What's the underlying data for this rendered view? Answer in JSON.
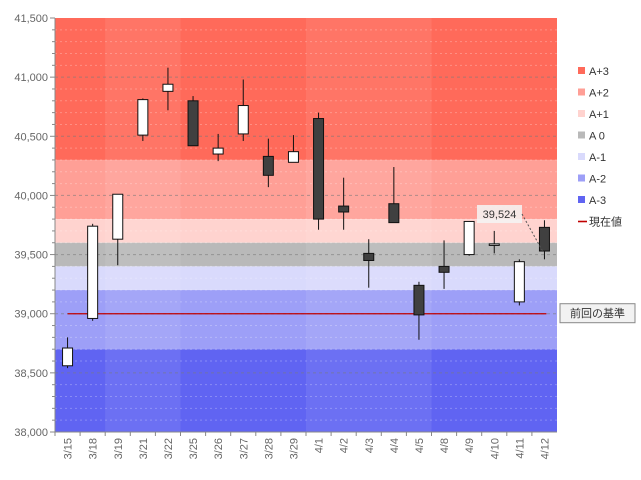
{
  "chart_data": {
    "type": "candlestick",
    "title": "",
    "ylim": [
      38000,
      41500
    ],
    "y_ticks": [
      "38,000",
      "38,500",
      "39,000",
      "39,500",
      "40,000",
      "40,500",
      "41,000",
      "41,500"
    ],
    "y_tick_values": [
      38000,
      38500,
      39000,
      39500,
      40000,
      40500,
      41000,
      41500
    ],
    "categories": [
      "3/15",
      "3/18",
      "3/19",
      "3/21",
      "3/22",
      "3/25",
      "3/26",
      "3/27",
      "3/28",
      "3/29",
      "4/1",
      "4/2",
      "4/3",
      "4/4",
      "4/5",
      "4/8",
      "4/9",
      "4/10",
      "4/11",
      "4/12"
    ],
    "ohlc": [
      {
        "date": "3/15",
        "open": 38560,
        "high": 38800,
        "low": 38540,
        "close": 38710
      },
      {
        "date": "3/18",
        "open": 38960,
        "high": 39760,
        "low": 38940,
        "close": 39740
      },
      {
        "date": "3/19",
        "open": 39630,
        "high": 40010,
        "low": 39410,
        "close": 40010
      },
      {
        "date": "3/21",
        "open": 40510,
        "high": 40820,
        "low": 40460,
        "close": 40810
      },
      {
        "date": "3/22",
        "open": 40880,
        "high": 41080,
        "low": 40720,
        "close": 40940
      },
      {
        "date": "3/25",
        "open": 40800,
        "high": 40840,
        "low": 40420,
        "close": 40420
      },
      {
        "date": "3/26",
        "open": 40350,
        "high": 40520,
        "low": 40290,
        "close": 40400
      },
      {
        "date": "3/27",
        "open": 40520,
        "high": 40980,
        "low": 40460,
        "close": 40760
      },
      {
        "date": "3/28",
        "open": 40330,
        "high": 40480,
        "low": 40070,
        "close": 40170
      },
      {
        "date": "3/29",
        "open": 40280,
        "high": 40510,
        "low": 40280,
        "close": 40370
      },
      {
        "date": "4/1",
        "open": 40650,
        "high": 40700,
        "low": 39710,
        "close": 39800
      },
      {
        "date": "4/2",
        "open": 39910,
        "high": 40150,
        "low": 39710,
        "close": 39860
      },
      {
        "date": "4/3",
        "open": 39510,
        "high": 39630,
        "low": 39220,
        "close": 39450
      },
      {
        "date": "4/4",
        "open": 39930,
        "high": 40240,
        "low": 39770,
        "close": 39770
      },
      {
        "date": "4/5",
        "open": 39240,
        "high": 39270,
        "low": 38780,
        "close": 38990
      },
      {
        "date": "4/8",
        "open": 39400,
        "high": 39620,
        "low": 39210,
        "close": 39350
      },
      {
        "date": "4/9",
        "open": 39500,
        "high": 39780,
        "low": 39490,
        "close": 39780
      },
      {
        "date": "4/10",
        "open": 39580,
        "high": 39700,
        "low": 39510,
        "close": 39590
      },
      {
        "date": "4/11",
        "open": 39100,
        "high": 39460,
        "low": 39070,
        "close": 39440
      },
      {
        "date": "4/12",
        "open": 39730,
        "high": 39790,
        "low": 39460,
        "close": 39530
      }
    ],
    "bands": [
      {
        "name": "A+3",
        "from": 40300,
        "to": 41500,
        "color": "#ff6a5a"
      },
      {
        "name": "A+2",
        "from": 39800,
        "to": 40300,
        "color": "#ff9f96"
      },
      {
        "name": "A+1",
        "from": 39600,
        "to": 39800,
        "color": "#ffd3cf"
      },
      {
        "name": "A 0",
        "from": 39400,
        "to": 39600,
        "color": "#b9b9b9"
      },
      {
        "name": "A-1",
        "from": 39200,
        "to": 39400,
        "color": "#d9dafc"
      },
      {
        "name": "A-2",
        "from": 38700,
        "to": 39200,
        "color": "#9d9ff7"
      },
      {
        "name": "A-3",
        "from": 38000,
        "to": 38700,
        "color": "#6064f2"
      }
    ],
    "legend": [
      {
        "label": "A+3",
        "color": "#ff6a5a",
        "kind": "box"
      },
      {
        "label": "A+2",
        "color": "#ff9f96",
        "kind": "box"
      },
      {
        "label": "A+1",
        "color": "#ffd3cf",
        "kind": "box"
      },
      {
        "label": "A 0",
        "color": "#b9b9b9",
        "kind": "box"
      },
      {
        "label": "A-1",
        "color": "#d9dafc",
        "kind": "box"
      },
      {
        "label": "A-2",
        "color": "#9d9ff7",
        "kind": "box"
      },
      {
        "label": "A-3",
        "color": "#6064f2",
        "kind": "box"
      },
      {
        "label": "現在値",
        "color": "#c00000",
        "kind": "line"
      }
    ],
    "current_value": {
      "value": 39524,
      "label": "39,524"
    },
    "baseline": {
      "value": 39000,
      "label": "前回の基準",
      "color": "#c00000"
    },
    "colors": {
      "up_fill": "#ffffff",
      "down_fill": "#404040",
      "candle_stroke": "#111111",
      "grid": "#8a8a8a",
      "axis": "#888888"
    }
  }
}
